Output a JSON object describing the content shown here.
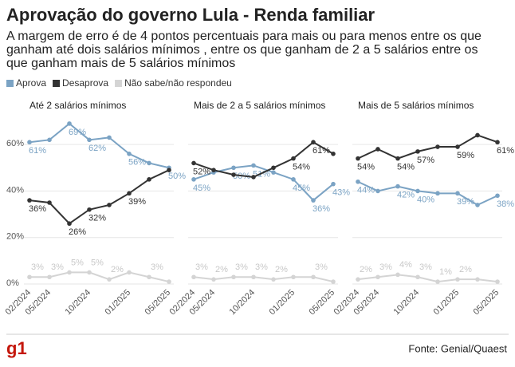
{
  "title": "Aprovação do governo Lula - Renda familiar",
  "subtitle": [
    "A margem de erro é de 4 pontos percentuais para mais ou para menos entre os que",
    "ganham até dois salários mínimos , entre os que ganham de 2 a 5 salários entre os",
    "que ganham mais de 5 salários mínimos"
  ],
  "source": "Fonte: Genial/Quaest",
  "logo": "g1",
  "chart_data": [
    {
      "type": "line",
      "title": "Até 2 salários mínimos",
      "categories": [
        "02/2024",
        "05/2024",
        null,
        "10/2024",
        null,
        "01/2025",
        null,
        "05/2025"
      ],
      "ylim": [
        0,
        70
      ],
      "yticks": [
        {
          "value": 0,
          "label": "0%"
        },
        {
          "value": 20,
          "label": "20%"
        },
        {
          "value": 40,
          "label": "40%"
        },
        {
          "value": 60,
          "label": "60%"
        }
      ],
      "grid": true,
      "series": [
        {
          "name": "Aprova",
          "color": "#7ba3c4",
          "values": [
            61,
            62,
            69,
            62,
            63,
            56,
            52,
            50
          ],
          "value_labels": [
            "61%",
            null,
            "69%",
            "62%",
            null,
            "56%",
            null,
            "50%"
          ]
        },
        {
          "name": "Desaprova",
          "color": "#333333",
          "values": [
            36,
            35,
            26,
            32,
            34,
            39,
            45,
            49
          ],
          "value_labels": [
            "36%",
            null,
            "26%",
            "32%",
            null,
            "39%",
            null,
            null
          ]
        },
        {
          "name": "Não sabe/não respondeu",
          "color": "#d4d4d4",
          "values": [
            3,
            3,
            5,
            5,
            2,
            5,
            3,
            1
          ],
          "value_labels": [
            "3%",
            "3%",
            "5%",
            "5%",
            "2%",
            null,
            "3%",
            null
          ]
        }
      ]
    },
    {
      "type": "line",
      "title": "Mais de 2 a 5 salários mínimos",
      "categories": [
        "02/2024",
        "05/2024",
        null,
        "10/2024",
        null,
        "01/2025",
        null,
        "05/2025"
      ],
      "series": [
        {
          "values": [
            45,
            48,
            50,
            51,
            48,
            45,
            36,
            43
          ],
          "value_labels": [
            "45%",
            null,
            "50%",
            "51%",
            null,
            "45%",
            "36%",
            "43%"
          ]
        },
        {
          "values": [
            52,
            49,
            47,
            46,
            50,
            54,
            61,
            56
          ],
          "value_labels": [
            "52%",
            null,
            null,
            null,
            null,
            "54%",
            "61%",
            null
          ]
        },
        {
          "values": [
            3,
            2,
            3,
            3,
            2,
            3,
            3,
            1
          ],
          "value_labels": [
            "3%",
            "2%",
            "3%",
            "3%",
            "2%",
            null,
            "3%",
            null
          ]
        }
      ]
    },
    {
      "type": "line",
      "title": "Mais de 5 salários mínimos",
      "categories": [
        "02/2024",
        "05/2024",
        null,
        "10/2024",
        null,
        "01/2025",
        null,
        "05/2025"
      ],
      "series": [
        {
          "values": [
            44,
            40,
            42,
            40,
            39,
            39,
            34,
            38
          ],
          "value_labels": [
            "44%",
            null,
            "42%",
            "40%",
            null,
            "39%",
            null,
            "38%"
          ]
        },
        {
          "values": [
            54,
            58,
            54,
            57,
            59,
            59,
            64,
            61
          ],
          "value_labels": [
            "54%",
            null,
            "54%",
            "57%",
            null,
            "59%",
            null,
            "61%"
          ]
        },
        {
          "values": [
            2,
            3,
            4,
            3,
            1,
            2,
            2,
            1
          ],
          "value_labels": [
            "2%",
            "3%",
            "4%",
            "3%",
            "1%",
            "2%",
            null,
            null
          ]
        }
      ]
    }
  ]
}
